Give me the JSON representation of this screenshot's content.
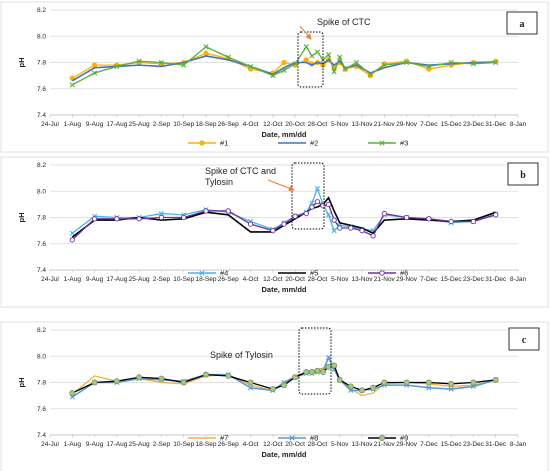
{
  "chart_data": [
    {
      "type": "line",
      "panel_label": "a",
      "annotation": [
        "Spike of CTC"
      ],
      "xlabel": "Date, mm/dd",
      "ylabel": "pH",
      "ylim": [
        7.4,
        8.2
      ],
      "yticks": [
        "7.4",
        "7.6",
        "7.8",
        "8.0",
        "8.2"
      ],
      "xticks": [
        "24-Jul",
        "1-Aug",
        "9-Aug",
        "17-Aug",
        "25-Aug",
        "2-Sep",
        "10-Sep",
        "18-Sep",
        "26-Sep",
        "4-Oct",
        "12-Oct",
        "20-Oct",
        "28-Oct",
        "5-Nov",
        "13-Nov",
        "21-Nov",
        "29-Nov",
        "7-Dec",
        "15-Dec",
        "23-Dec",
        "31-Dec",
        "8-Jan"
      ],
      "legend_position": "bottom",
      "series": [
        {
          "name": "#1",
          "color": "#ffb000",
          "marker": "circle",
          "x": [
            8,
            16,
            24,
            32,
            40,
            48,
            56,
            64,
            72,
            80,
            84,
            88,
            92,
            94,
            96,
            98,
            100,
            102,
            104,
            106,
            110,
            115,
            120,
            128,
            136,
            144,
            152,
            160
          ],
          "y": [
            7.68,
            7.78,
            7.78,
            7.8,
            7.79,
            7.8,
            7.87,
            7.83,
            7.75,
            7.72,
            7.8,
            7.78,
            7.82,
            7.79,
            7.8,
            7.78,
            7.82,
            7.76,
            7.8,
            7.75,
            7.77,
            7.7,
            7.79,
            7.81,
            7.75,
            7.78,
            7.8,
            7.81
          ]
        },
        {
          "name": "#2",
          "color": "#4472c4",
          "marker": "none",
          "x": [
            8,
            16,
            24,
            32,
            40,
            48,
            56,
            64,
            72,
            80,
            84,
            88,
            92,
            94,
            96,
            98,
            100,
            102,
            104,
            106,
            110,
            115,
            120,
            128,
            136,
            144,
            152,
            160
          ],
          "y": [
            7.66,
            7.76,
            7.77,
            7.78,
            7.77,
            7.8,
            7.85,
            7.82,
            7.77,
            7.71,
            7.76,
            7.8,
            7.8,
            7.78,
            7.8,
            7.79,
            7.82,
            7.78,
            7.81,
            7.76,
            7.78,
            7.72,
            7.76,
            7.8,
            7.78,
            7.79,
            7.8,
            7.8
          ]
        },
        {
          "name": "#3",
          "color": "#5aaf3c",
          "marker": "x",
          "x": [
            8,
            16,
            24,
            32,
            40,
            48,
            56,
            64,
            72,
            80,
            84,
            88,
            92,
            94,
            96,
            98,
            100,
            102,
            104,
            106,
            110,
            115,
            120,
            128,
            136,
            144,
            152,
            160
          ],
          "y": [
            7.63,
            7.72,
            7.77,
            7.81,
            7.8,
            7.78,
            7.92,
            7.84,
            7.77,
            7.7,
            7.74,
            7.79,
            7.92,
            7.85,
            7.88,
            7.82,
            7.86,
            7.73,
            7.84,
            7.75,
            7.8,
            7.71,
            7.78,
            7.8,
            7.77,
            7.8,
            7.79,
            7.8
          ]
        }
      ]
    },
    {
      "type": "line",
      "panel_label": "b",
      "annotation": [
        "Spike of CTC and",
        "Tylosin"
      ],
      "xlabel": "Date, mm/dd",
      "ylabel": "pH",
      "ylim": [
        7.4,
        8.2
      ],
      "yticks": [
        "7.4",
        "7.6",
        "7.8",
        "8.0",
        "8.2"
      ],
      "xticks": [
        "24-Jul",
        "1-Aug",
        "9-Aug",
        "17-Aug",
        "25-Aug",
        "2-Sep",
        "10-Sep",
        "18-Sep",
        "26-Sep",
        "4-Oct",
        "12-Oct",
        "20-Oct",
        "28-Oct",
        "5-Nov",
        "13-Nov",
        "21-Nov",
        "29-Nov",
        "7-Dec",
        "15-Dec",
        "23-Dec",
        "31-Dec",
        "8-Jan"
      ],
      "legend_position": "bottom",
      "series": [
        {
          "name": "#4",
          "color": "#4bb4e6",
          "marker": "x",
          "x": [
            8,
            16,
            24,
            32,
            40,
            48,
            56,
            64,
            72,
            80,
            84,
            88,
            92,
            94,
            96,
            98,
            100,
            102,
            104,
            108,
            112,
            116,
            120,
            128,
            136,
            144,
            152,
            160
          ],
          "y": [
            7.68,
            7.81,
            7.8,
            7.8,
            7.83,
            7.82,
            7.86,
            7.84,
            7.77,
            7.71,
            7.76,
            7.81,
            7.84,
            7.91,
            8.02,
            7.9,
            7.82,
            7.7,
            7.74,
            7.73,
            7.71,
            7.7,
            7.82,
            7.8,
            7.79,
            7.76,
            7.77,
            7.83
          ]
        },
        {
          "name": "#5",
          "color": "#000000",
          "marker": "none",
          "x": [
            8,
            16,
            24,
            32,
            40,
            48,
            56,
            64,
            72,
            80,
            84,
            88,
            92,
            94,
            96,
            98,
            100,
            102,
            104,
            108,
            112,
            116,
            120,
            128,
            136,
            144,
            152,
            160
          ],
          "y": [
            7.65,
            7.78,
            7.78,
            7.8,
            7.78,
            7.79,
            7.84,
            7.82,
            7.69,
            7.69,
            7.74,
            7.79,
            7.84,
            7.87,
            7.88,
            7.9,
            7.95,
            7.85,
            7.76,
            7.74,
            7.72,
            7.68,
            7.78,
            7.79,
            7.78,
            7.77,
            7.78,
            7.84
          ]
        },
        {
          "name": "#6",
          "color": "#7030a0",
          "marker": "circle",
          "x": [
            8,
            16,
            24,
            32,
            40,
            48,
            56,
            64,
            72,
            80,
            84,
            88,
            92,
            94,
            96,
            98,
            100,
            102,
            104,
            108,
            112,
            116,
            120,
            128,
            136,
            144,
            152,
            160
          ],
          "y": [
            7.63,
            7.79,
            7.79,
            7.79,
            7.8,
            7.8,
            7.85,
            7.85,
            7.75,
            7.7,
            7.75,
            7.81,
            7.83,
            7.88,
            7.92,
            7.89,
            7.9,
            7.78,
            7.72,
            7.72,
            7.7,
            7.66,
            7.83,
            7.8,
            7.79,
            7.77,
            7.77,
            7.82
          ]
        }
      ]
    },
    {
      "type": "line",
      "panel_label": "c",
      "annotation": [
        "Spike of Tylosin"
      ],
      "xlabel": "Date, mm/dd",
      "ylabel": "pH",
      "ylim": [
        7.4,
        8.2
      ],
      "yticks": [
        "7.4",
        "7.6",
        "7.8",
        "8.0",
        "8.2"
      ],
      "xticks": [
        "24-Jul",
        "1-Aug",
        "9-Aug",
        "17-Aug",
        "25-Aug",
        "2-Sep",
        "10-Sep",
        "18-Sep",
        "26-Sep",
        "4-Oct",
        "12-Oct",
        "20-Oct",
        "28-Oct",
        "5-Nov",
        "13-Nov",
        "21-Nov",
        "29-Nov",
        "7-Dec",
        "15-Dec",
        "23-Dec",
        "31-Dec",
        "8-Jan"
      ],
      "legend_position": "bottom",
      "series": [
        {
          "name": "#7",
          "color": "#f5b041",
          "marker": "none",
          "x": [
            8,
            16,
            24,
            32,
            40,
            48,
            56,
            64,
            72,
            80,
            84,
            88,
            92,
            94,
            96,
            98,
            100,
            102,
            104,
            108,
            112,
            116,
            120,
            128,
            136,
            144,
            152,
            160
          ],
          "y": [
            7.71,
            7.85,
            7.81,
            7.83,
            7.8,
            7.79,
            7.85,
            7.86,
            7.78,
            7.74,
            7.8,
            7.85,
            7.88,
            7.89,
            7.9,
            7.91,
            7.92,
            7.9,
            7.83,
            7.75,
            7.7,
            7.72,
            7.79,
            7.8,
            7.79,
            7.77,
            7.78,
            7.82
          ]
        },
        {
          "name": "#8",
          "color": "#5b9bd5",
          "marker": "x",
          "x": [
            8,
            16,
            24,
            32,
            40,
            48,
            56,
            64,
            72,
            80,
            84,
            88,
            92,
            94,
            96,
            98,
            100,
            102,
            104,
            108,
            112,
            116,
            120,
            128,
            136,
            144,
            152,
            160
          ],
          "y": [
            7.69,
            7.8,
            7.8,
            7.83,
            7.82,
            7.81,
            7.86,
            7.86,
            7.76,
            7.74,
            7.8,
            7.84,
            7.87,
            7.87,
            7.88,
            7.89,
            7.99,
            7.9,
            7.82,
            7.74,
            7.74,
            7.75,
            7.78,
            7.78,
            7.76,
            7.75,
            7.77,
            7.82
          ]
        },
        {
          "name": "#9",
          "color": "#000000",
          "marker": "circle-green",
          "x": [
            8,
            16,
            24,
            32,
            40,
            48,
            56,
            64,
            72,
            80,
            84,
            88,
            92,
            94,
            96,
            98,
            100,
            102,
            104,
            108,
            112,
            116,
            120,
            128,
            136,
            144,
            152,
            160
          ],
          "y": [
            7.72,
            7.8,
            7.81,
            7.84,
            7.83,
            7.8,
            7.86,
            7.85,
            7.8,
            7.75,
            7.78,
            7.84,
            7.88,
            7.88,
            7.89,
            7.88,
            7.92,
            7.93,
            7.82,
            7.77,
            7.74,
            7.76,
            7.8,
            7.8,
            7.8,
            7.79,
            7.8,
            7.82
          ]
        }
      ]
    }
  ]
}
